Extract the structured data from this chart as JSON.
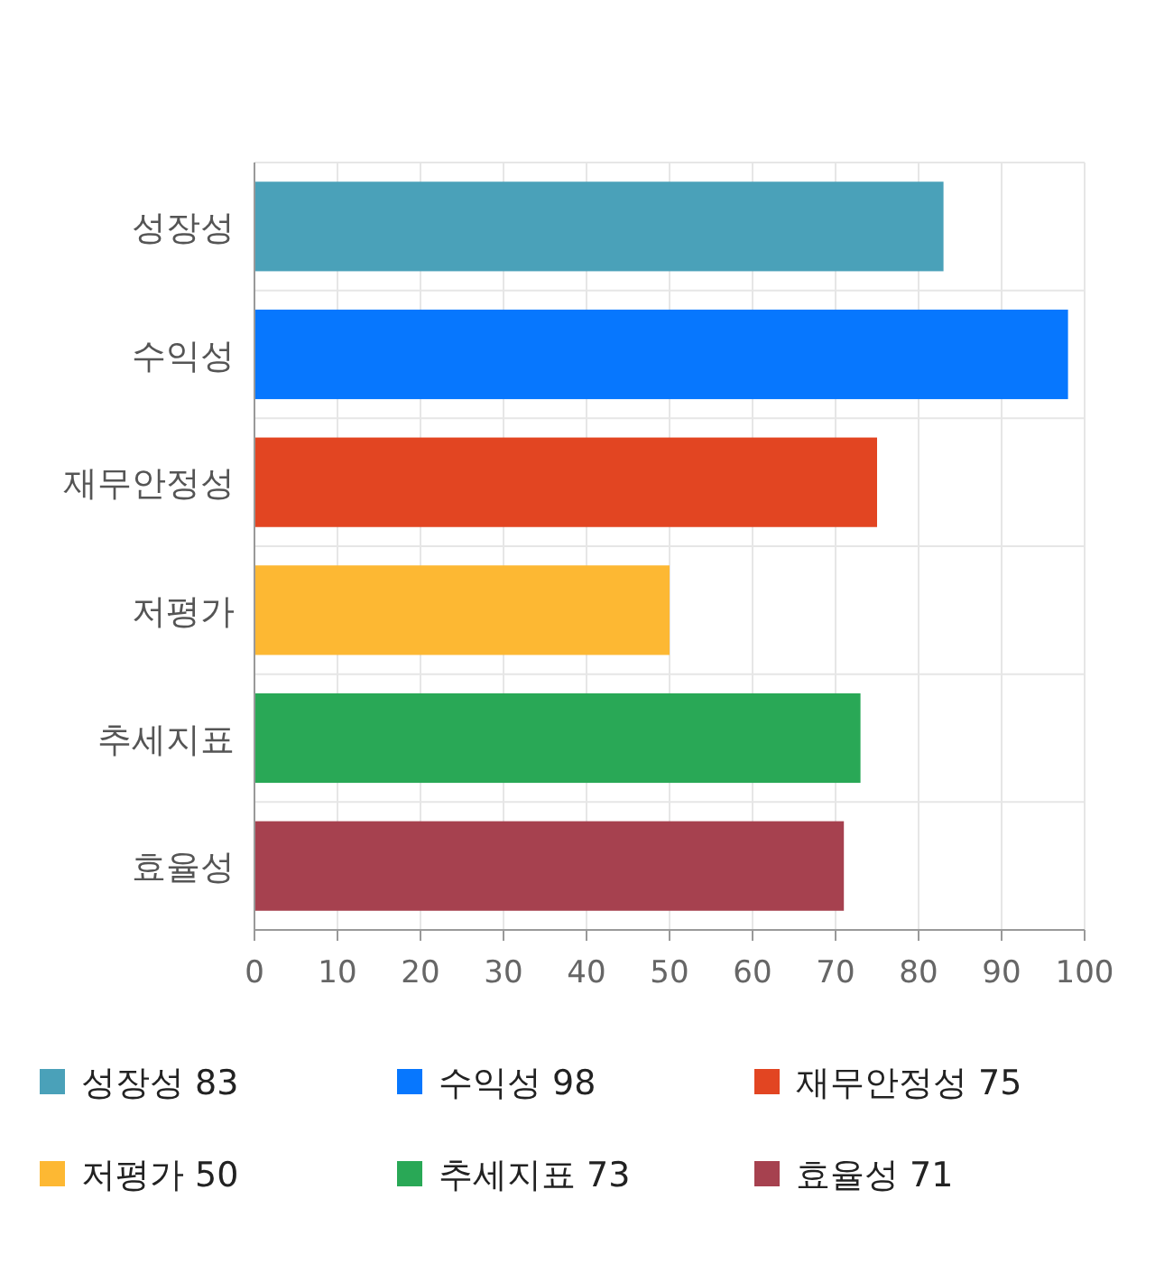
{
  "chart_data": {
    "type": "bar",
    "orientation": "horizontal",
    "categories": [
      "성장성",
      "수익성",
      "재무안정성",
      "저평가",
      "추세지표",
      "효율성"
    ],
    "series": [
      {
        "name": "성장성 83",
        "color": "#4aa1b9",
        "values": [
          83,
          null,
          null,
          null,
          null,
          null
        ]
      },
      {
        "name": "수익성 98",
        "color": "#0777fe",
        "values": [
          null,
          98,
          null,
          null,
          null,
          null
        ]
      },
      {
        "name": "재무안정성 75",
        "color": "#e24522",
        "values": [
          null,
          null,
          75,
          null,
          null,
          null
        ]
      },
      {
        "name": "저평가 50",
        "color": "#fdb833",
        "values": [
          null,
          null,
          null,
          50,
          null,
          null
        ]
      },
      {
        "name": "추세지표 73",
        "color": "#29a856",
        "values": [
          null,
          null,
          null,
          null,
          73,
          null
        ]
      },
      {
        "name": "효율성 71",
        "color": "#a6414f",
        "values": [
          null,
          null,
          null,
          null,
          null,
          71
        ]
      }
    ],
    "xlim": [
      0,
      100
    ],
    "xticks": [
      0,
      10,
      20,
      30,
      40,
      50,
      60,
      70,
      80,
      90,
      100
    ],
    "grid": true,
    "legend": "bottom"
  }
}
